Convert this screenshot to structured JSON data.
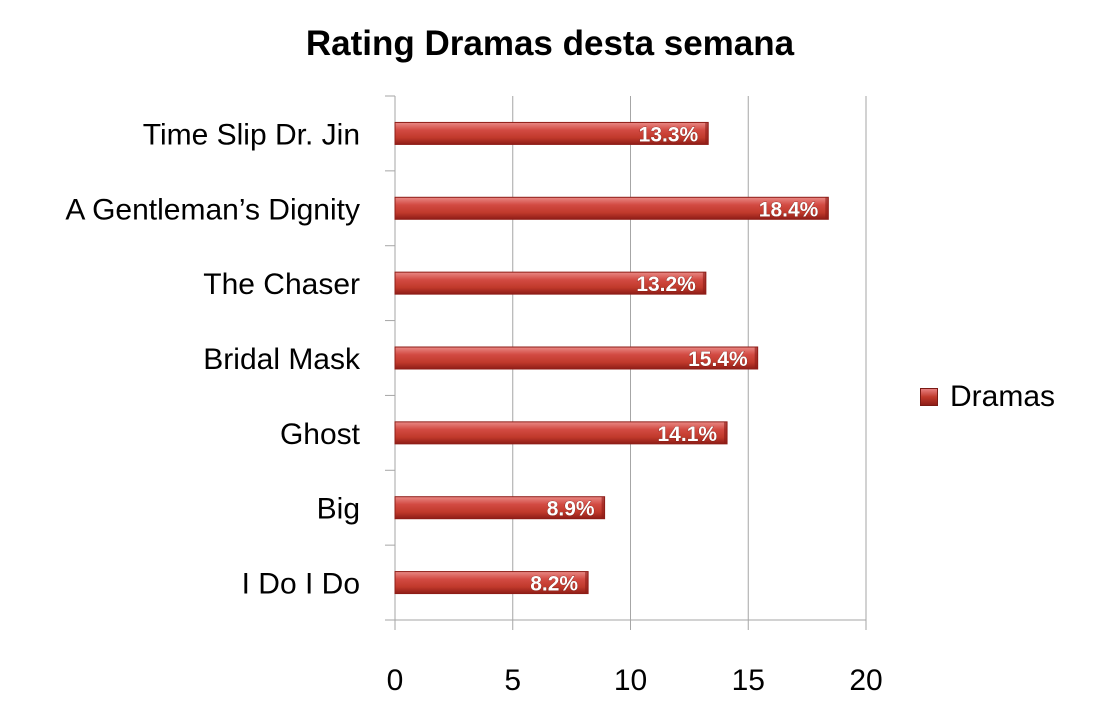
{
  "chart_data": {
    "type": "bar",
    "orientation": "horizontal",
    "title": "Rating Dramas desta semana",
    "categories": [
      "Time Slip Dr. Jin",
      "A Gentleman’s Dignity",
      "The Chaser",
      "Bridal Mask",
      "Ghost",
      "Big",
      "I Do I Do"
    ],
    "series": [
      {
        "name": "Dramas",
        "values": [
          13.3,
          18.4,
          13.2,
          15.4,
          14.1,
          8.9,
          8.2
        ],
        "labels": [
          "13.3%",
          "18.4%",
          "13.2%",
          "15.4%",
          "14.1%",
          "8.9%",
          "8.2%"
        ]
      }
    ],
    "xlabel": "",
    "ylabel": "",
    "xlim": [
      0,
      20
    ],
    "xticks": [
      "0",
      "5",
      "10",
      "15",
      "20"
    ],
    "grid": "vertical",
    "legend_position": "right",
    "colors": {
      "bar": "#c0392b",
      "bar_light": "#e98a86",
      "bar_dark": "#8e1d17",
      "grid": "#a6a6a6"
    }
  }
}
